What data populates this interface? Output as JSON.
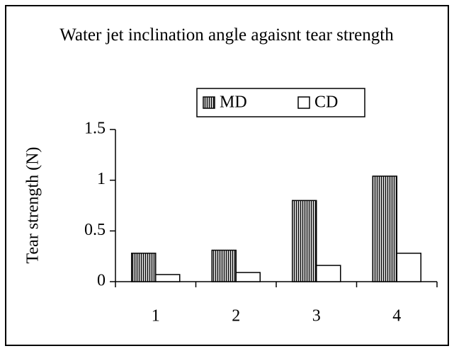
{
  "chart_data": {
    "type": "bar",
    "title": "Water jet inclination angle agaisnt tear strength",
    "y_label": "Tear strength (N)",
    "categories": [
      "1",
      "2",
      "3",
      "4"
    ],
    "series": [
      {
        "name": "MD",
        "color": "#ffffff",
        "pattern": "vertical-lines",
        "values": [
          0.28,
          0.31,
          0.8,
          1.04
        ]
      },
      {
        "name": "CD",
        "color": "#ffffff",
        "pattern": "none",
        "values": [
          0.07,
          0.09,
          0.16,
          0.28
        ]
      }
    ],
    "ylim": [
      0,
      1.5
    ],
    "yticks": [
      0,
      0.5,
      1,
      1.5
    ],
    "grid": false,
    "legend": "top"
  }
}
